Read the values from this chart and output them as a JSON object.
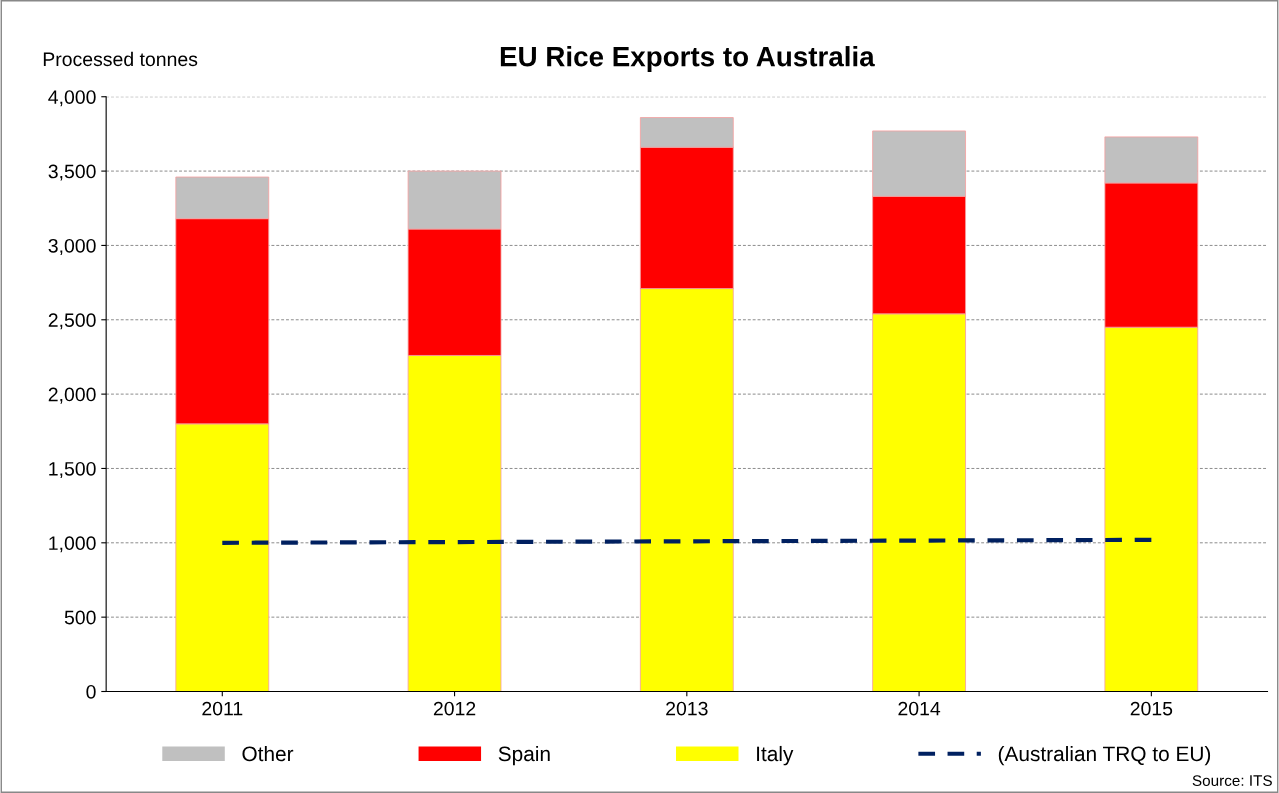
{
  "chart_data": {
    "type": "bar",
    "title": "EU Rice Exports to Australia",
    "ylabel": "Processed tonnes",
    "categories": [
      "2011",
      "2012",
      "2013",
      "2014",
      "2015"
    ],
    "stacked": true,
    "series": [
      {
        "name": "Italy",
        "color": "#ffff00",
        "values": [
          1800,
          2260,
          2710,
          2540,
          2450
        ]
      },
      {
        "name": "Spain",
        "color": "#ff0000",
        "values": [
          1380,
          850,
          950,
          790,
          970
        ]
      },
      {
        "name": "Other",
        "color": "#c0c0c0",
        "values": [
          280,
          390,
          200,
          440,
          310
        ]
      },
      {
        "name": "(Australian TRQ to EU)",
        "type": "line",
        "color": "#002060",
        "line_style": "dashed",
        "values": [
          1000,
          1005,
          1010,
          1015,
          1020
        ]
      }
    ],
    "ylim": [
      0,
      4000
    ],
    "yticks": [
      {
        "value": 0,
        "label": "0"
      },
      {
        "value": 500,
        "label": "500"
      },
      {
        "value": 1000,
        "label": "1,000"
      },
      {
        "value": 1500,
        "label": "1,500"
      },
      {
        "value": 2000,
        "label": "2,000"
      },
      {
        "value": 2500,
        "label": "2,500"
      },
      {
        "value": 3000,
        "label": "3,000"
      },
      {
        "value": 3500,
        "label": "3,500"
      },
      {
        "value": 4000,
        "label": "4,000"
      }
    ],
    "grid": "y",
    "legend": "bottom",
    "annotations": [
      "Source: ITS"
    ]
  }
}
